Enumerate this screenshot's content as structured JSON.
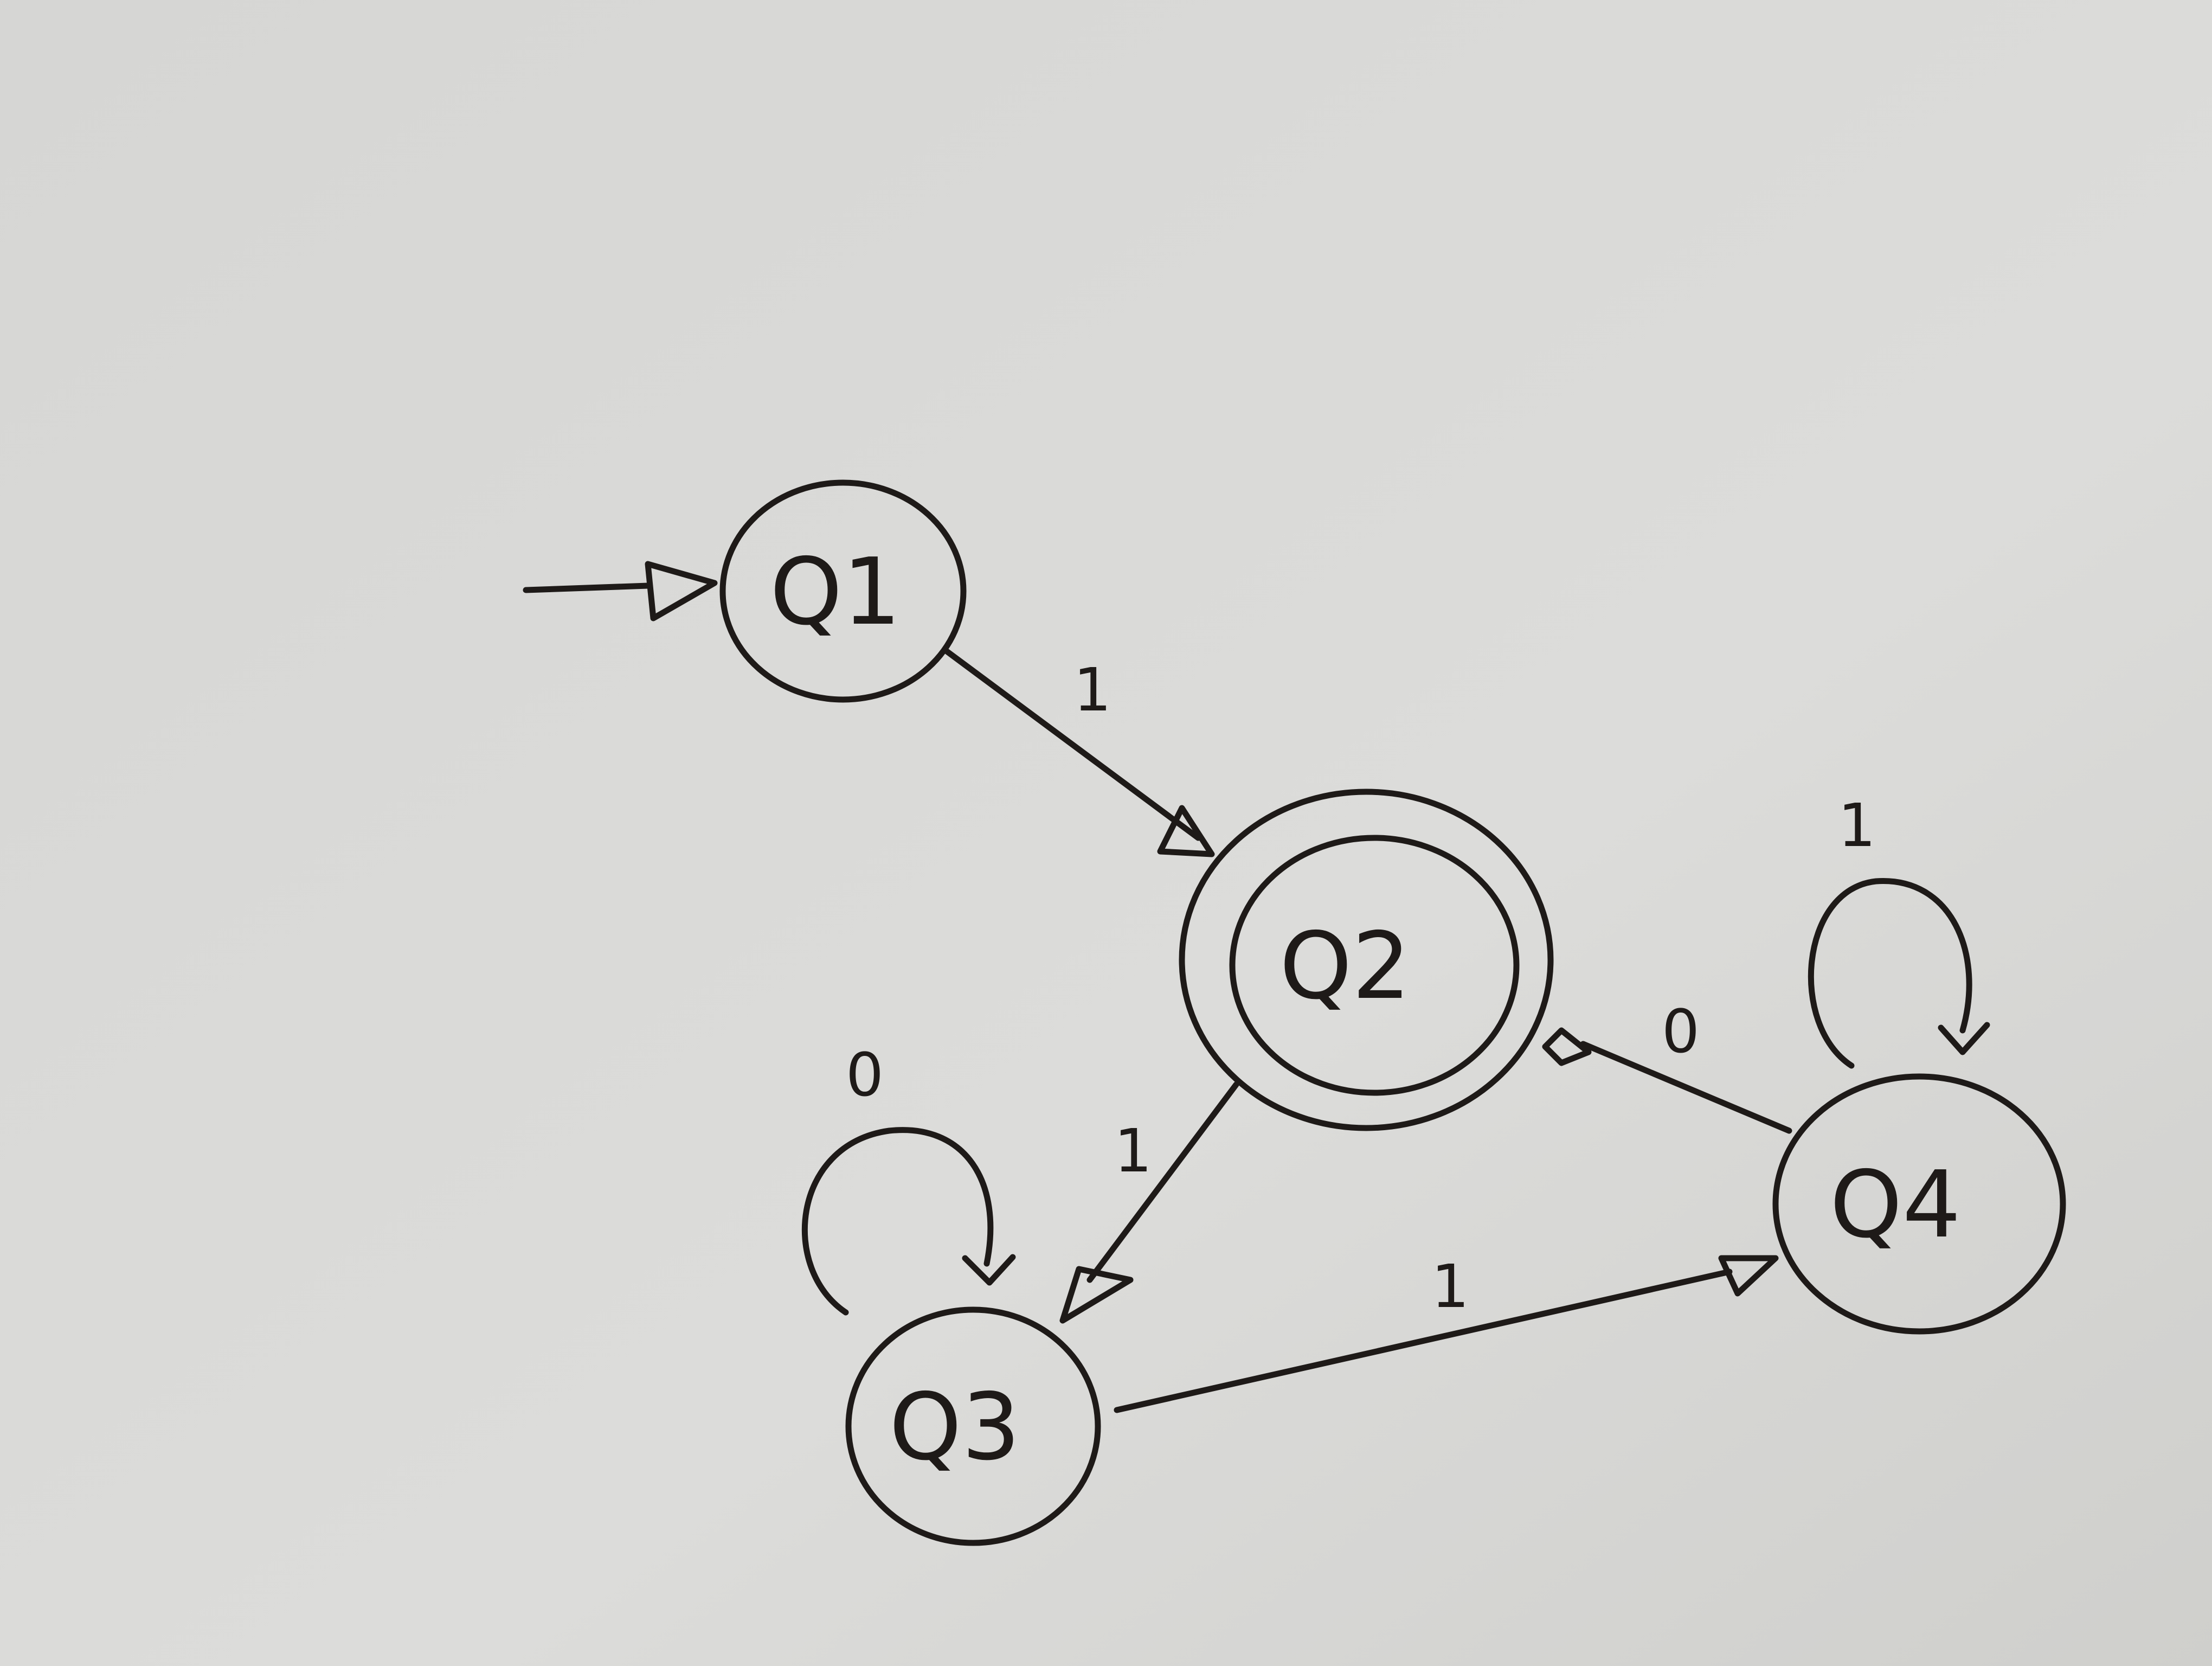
{
  "diagram": {
    "states": [
      {
        "id": "q1",
        "label": "Q1",
        "initial": true,
        "accepting": false
      },
      {
        "id": "q2",
        "label": "Q2",
        "initial": false,
        "accepting": true
      },
      {
        "id": "q3",
        "label": "Q3",
        "initial": false,
        "accepting": false
      },
      {
        "id": "q4",
        "label": "Q4",
        "initial": false,
        "accepting": false
      }
    ],
    "transitions": [
      {
        "from": "Q1",
        "to": "Q2",
        "symbol": "1"
      },
      {
        "from": "Q2",
        "to": "Q3",
        "symbol": "1"
      },
      {
        "from": "Q3",
        "to": "Q3",
        "symbol": "0"
      },
      {
        "from": "Q3",
        "to": "Q4",
        "symbol": "1"
      },
      {
        "from": "Q4",
        "to": "Q4",
        "symbol": "1"
      },
      {
        "from": "Q4",
        "to": "Q2",
        "symbol": "0"
      }
    ]
  },
  "colors": {
    "paper": "#d9d9d7",
    "ink": "#1e1a18"
  }
}
